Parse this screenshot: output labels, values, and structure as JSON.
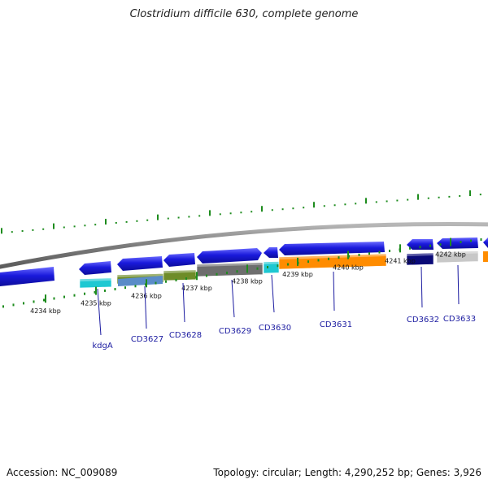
{
  "title": "Clostridium difficile 630, complete genome",
  "footer": {
    "accession": "Accession: NC_009089",
    "topology": "Topology: circular; Length: 4,290,252 bp; Genes: 3,926"
  },
  "colors": {
    "background": "#ffffff",
    "backbone": "#8a8a8a",
    "tick": "#1e8c1e",
    "gene_arrow": "#1a1adc",
    "gene_label": "#1a1aa0"
  },
  "ticks": [
    {
      "label": "4234 kbp"
    },
    {
      "label": "4235 kbp"
    },
    {
      "label": "4236 kbp"
    },
    {
      "label": "4237 kbp"
    },
    {
      "label": "4238 kbp"
    },
    {
      "label": "4239 kbp"
    },
    {
      "label": "4240 kbp"
    },
    {
      "label": "4241 kbp"
    },
    {
      "label": "4242 kbp"
    }
  ],
  "genes": [
    {
      "name": "kdgA",
      "cog_color": "#1ec8d2"
    },
    {
      "name": "CD3627",
      "cog_color": "#6e8c28"
    },
    {
      "name": "CD3628",
      "cog_color": "#6e8c28"
    },
    {
      "name": "CD3629",
      "cog_color": "#6e6e6e"
    },
    {
      "name": "CD3630",
      "cog_color": "#1ec8d2"
    },
    {
      "name": "CD3631",
      "cog_color": "#ff8c00"
    },
    {
      "name": "CD3632",
      "cog_color": "#0a0a78"
    },
    {
      "name": "CD3633",
      "cog_color": "#c8c8c8"
    }
  ]
}
